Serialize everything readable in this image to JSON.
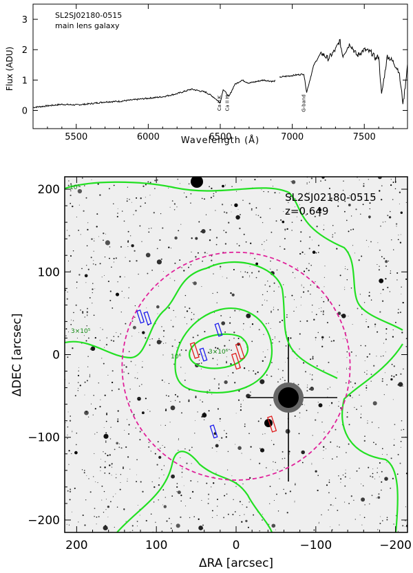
{
  "chart_data": [
    {
      "type": "line",
      "annotation_lines": [
        "SL2SJ02180-0515",
        "main lens galaxy"
      ],
      "xlabel": "Wavelength (Å)",
      "ylabel": "Flux (ADU)",
      "xlim": [
        5200,
        7800
      ],
      "ylim": [
        -0.6,
        3.5
      ],
      "xticks": [
        5500,
        6000,
        6500,
        7000,
        7500
      ],
      "yticks": [
        0,
        1,
        2,
        3
      ],
      "line_labels": [
        "Ca II K",
        "Ca II H",
        "G-band"
      ],
      "line_label_x": [
        6505,
        6560,
        7090
      ],
      "gap": [
        6880,
        6910
      ],
      "series": [
        {
          "x": [
            5200,
            5300,
            5400,
            5500,
            5600,
            5700,
            5800,
            5900,
            6000,
            6100,
            6200,
            6300,
            6400,
            6450,
            6500,
            6520,
            6560,
            6600,
            6650,
            6700,
            6800,
            6870,
            6920,
            7000,
            7080,
            7100,
            7150,
            7200,
            7250,
            7300,
            7330,
            7350,
            7400,
            7450,
            7500,
            7550,
            7580,
            7600,
            7620,
            7660,
            7700,
            7740,
            7770,
            7800
          ],
          "y": [
            0.1,
            0.15,
            0.2,
            0.18,
            0.22,
            0.28,
            0.3,
            0.35,
            0.4,
            0.45,
            0.55,
            0.7,
            0.6,
            0.45,
            0.25,
            0.7,
            0.45,
            0.85,
            1.0,
            0.9,
            1.0,
            0.95,
            1.1,
            1.15,
            1.2,
            0.6,
            1.5,
            1.9,
            1.7,
            2.0,
            2.3,
            1.8,
            2.2,
            1.8,
            2.0,
            1.9,
            1.7,
            1.8,
            0.5,
            1.8,
            1.6,
            1.3,
            0.2,
            1.5
          ]
        }
      ]
    },
    {
      "type": "scatter",
      "annotation_lines": [
        "SL2SJ02180-0515",
        "z=0.649"
      ],
      "xlabel": "ΔRA [arcsec]",
      "ylabel": "ΔDEC [arcsec]",
      "xlim": [
        215,
        -215
      ],
      "ylim": [
        -215,
        215
      ],
      "xticks": [
        200,
        100,
        0,
        -100,
        -200
      ],
      "yticks": [
        200,
        100,
        0,
        -100,
        -200
      ],
      "circle_radius": 143,
      "contour_labels": [
        "10⁵",
        "3×10⁵",
        "10⁶",
        "3×10⁶"
      ],
      "blue_slits": [
        [
          120,
          46
        ],
        [
          111,
          44
        ],
        [
          22,
          30
        ],
        [
          41,
          0
        ],
        [
          28,
          -93
        ]
      ],
      "red_slits": [
        [
          52,
          5
        ],
        [
          0,
          -8
        ],
        [
          -5,
          4
        ],
        [
          -45,
          -84
        ]
      ],
      "bright_star": [
        -63,
        -52
      ]
    }
  ]
}
